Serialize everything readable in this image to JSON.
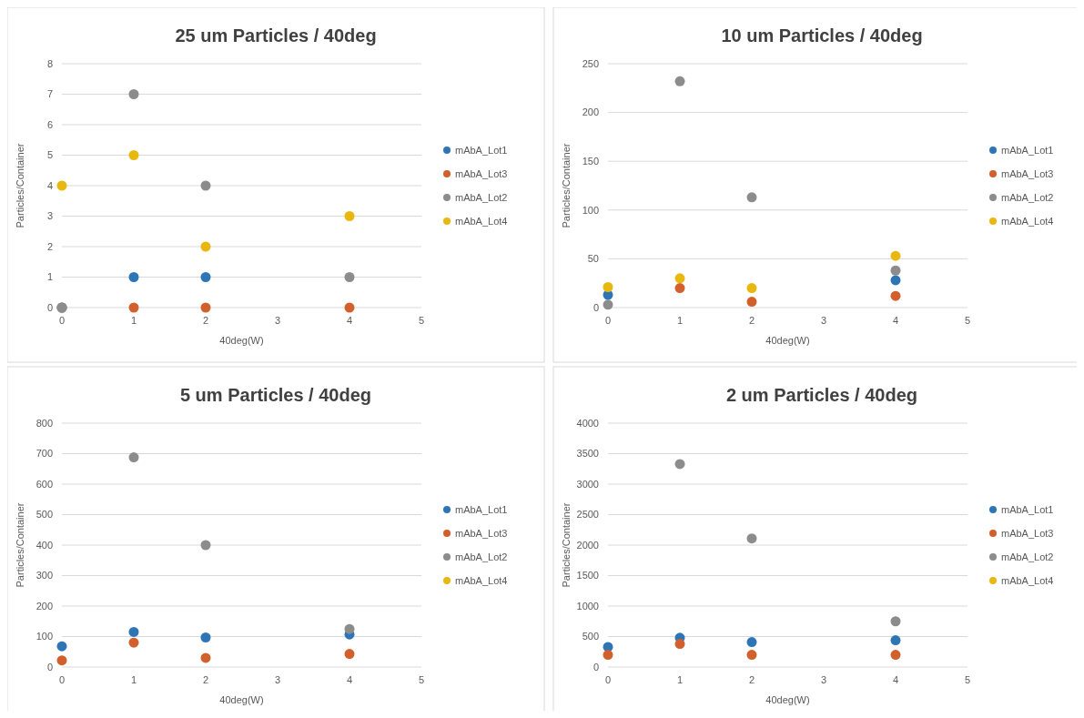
{
  "chart_data": [
    {
      "type": "scatter",
      "title": "25 um Particles / 40deg",
      "xlabel": "40deg(W)",
      "ylabel": "Particles/Container",
      "x": [
        0,
        1,
        2,
        4
      ],
      "xlim": [
        0,
        5
      ],
      "xticks": [
        0,
        1,
        2,
        3,
        4,
        5
      ],
      "ylim": [
        0,
        8
      ],
      "yticks": [
        0,
        1,
        2,
        3,
        4,
        5,
        6,
        7,
        8
      ],
      "grid": "y",
      "legend": "right",
      "marker": "circle",
      "series": [
        {
          "name": "mAbA_Lot1",
          "color": "#2e75b6",
          "values": [
            0,
            1,
            1,
            null
          ]
        },
        {
          "name": "mAbA_Lot3",
          "color": "#d2602c",
          "values": [
            0,
            0,
            0,
            0
          ]
        },
        {
          "name": "mAbA_Lot2",
          "color": "#8c8c8c",
          "values": [
            0,
            7,
            4,
            1
          ]
        },
        {
          "name": "mAbA_Lot4",
          "color": "#e8b80e",
          "values": [
            4,
            5,
            2,
            3
          ]
        }
      ]
    },
    {
      "type": "scatter",
      "title": "10 um Particles / 40deg",
      "xlabel": "40deg(W)",
      "ylabel": "Particles/Container",
      "x": [
        0,
        1,
        2,
        4
      ],
      "xlim": [
        0,
        5
      ],
      "xticks": [
        0,
        1,
        2,
        3,
        4,
        5
      ],
      "ylim": [
        0,
        250
      ],
      "yticks": [
        0,
        50,
        100,
        150,
        200,
        250
      ],
      "grid": "y",
      "legend": "right",
      "marker": "circle",
      "series": [
        {
          "name": "mAbA_Lot1",
          "color": "#2e75b6",
          "values": [
            13,
            null,
            null,
            28
          ]
        },
        {
          "name": "mAbA_Lot3",
          "color": "#d2602c",
          "values": [
            null,
            20,
            6,
            12
          ]
        },
        {
          "name": "mAbA_Lot2",
          "color": "#8c8c8c",
          "values": [
            3,
            232,
            113,
            38
          ]
        },
        {
          "name": "mAbA_Lot4",
          "color": "#e8b80e",
          "values": [
            21,
            30,
            20,
            53
          ]
        }
      ]
    },
    {
      "type": "scatter",
      "title": "5 um Particles / 40deg",
      "xlabel": "40deg(W)",
      "ylabel": "Particles/Container",
      "x": [
        0,
        1,
        2,
        4
      ],
      "xlim": [
        0,
        5
      ],
      "xticks": [
        0,
        1,
        2,
        3,
        4,
        5
      ],
      "ylim": [
        0,
        800
      ],
      "yticks": [
        0,
        100,
        200,
        300,
        400,
        500,
        600,
        700,
        800
      ],
      "grid": "y",
      "legend": "right",
      "marker": "circle",
      "series": [
        {
          "name": "mAbA_Lot1",
          "color": "#2e75b6",
          "values": [
            68,
            115,
            97,
            107
          ]
        },
        {
          "name": "mAbA_Lot3",
          "color": "#d2602c",
          "values": [
            22,
            80,
            30,
            43
          ]
        },
        {
          "name": "mAbA_Lot2",
          "color": "#8c8c8c",
          "values": [
            null,
            688,
            400,
            125
          ]
        },
        {
          "name": "mAbA_Lot4",
          "color": "#e8b80e",
          "values": [
            null,
            null,
            null,
            null
          ]
        }
      ]
    },
    {
      "type": "scatter",
      "title": "2 um Particles / 40deg",
      "xlabel": "40deg(W)",
      "ylabel": "Particles/Container",
      "x": [
        0,
        1,
        2,
        4
      ],
      "xlim": [
        0,
        5
      ],
      "xticks": [
        0,
        1,
        2,
        3,
        4,
        5
      ],
      "ylim": [
        0,
        4000
      ],
      "yticks": [
        0,
        500,
        1000,
        1500,
        2000,
        2500,
        3000,
        3500,
        4000
      ],
      "grid": "y",
      "legend": "right",
      "marker": "circle",
      "series": [
        {
          "name": "mAbA_Lot1",
          "color": "#2e75b6",
          "values": [
            330,
            480,
            410,
            440
          ]
        },
        {
          "name": "mAbA_Lot3",
          "color": "#d2602c",
          "values": [
            200,
            380,
            200,
            200
          ]
        },
        {
          "name": "mAbA_Lot2",
          "color": "#8c8c8c",
          "values": [
            null,
            3330,
            2110,
            750
          ]
        },
        {
          "name": "mAbA_Lot4",
          "color": "#e8b80e",
          "values": [
            null,
            null,
            null,
            null
          ]
        }
      ]
    }
  ]
}
